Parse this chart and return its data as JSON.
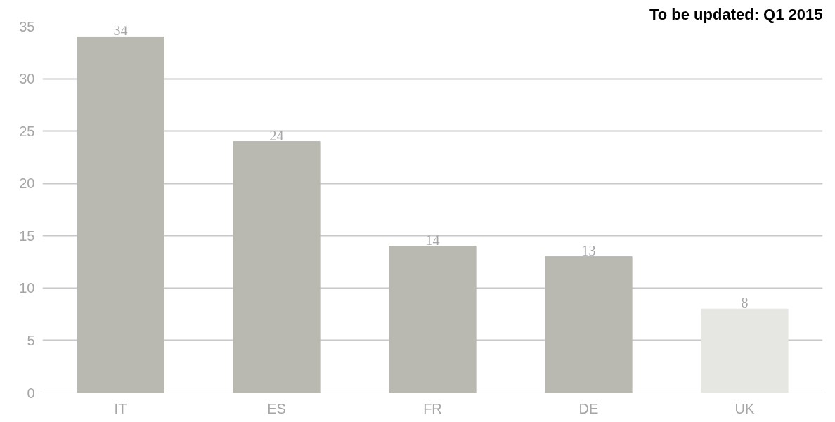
{
  "chart_data": {
    "type": "bar",
    "title": "To be updated: Q1 2015",
    "categories": [
      "IT",
      "ES",
      "FR",
      "DE",
      "UK"
    ],
    "values": [
      34,
      24,
      14,
      13,
      8
    ],
    "colors": [
      "#b9b9b1",
      "#b9b9b1",
      "#b9b9b1",
      "#b9b9b1",
      "#e6e6e2"
    ],
    "ylim": [
      0,
      35
    ],
    "yticks": [
      0,
      5,
      10,
      15,
      20,
      25,
      30,
      35
    ],
    "grid": "y",
    "data_labels": true
  }
}
